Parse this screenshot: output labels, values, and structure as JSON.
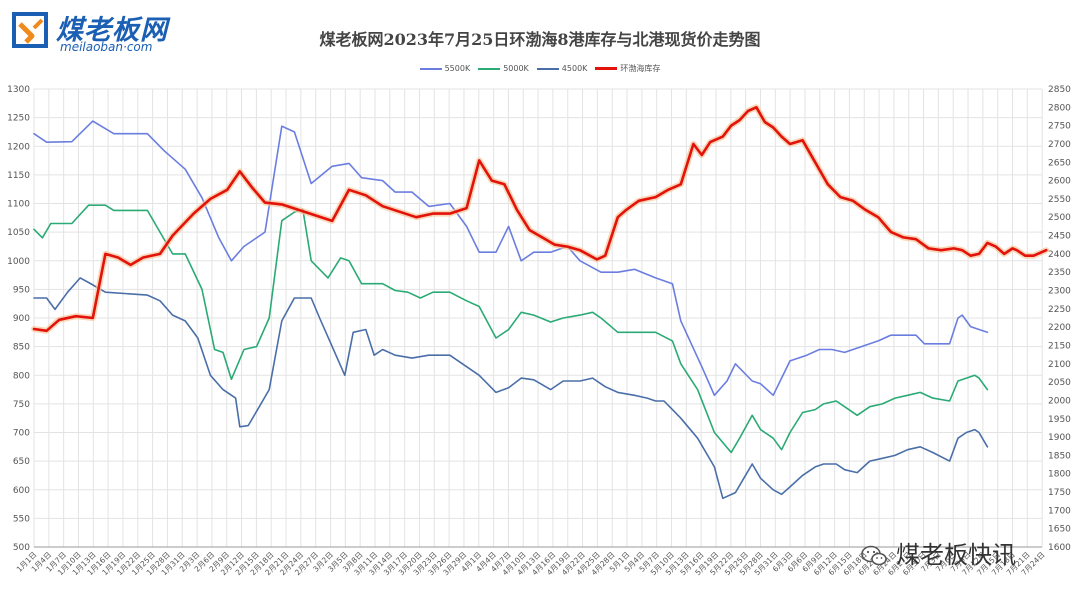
{
  "logo": {
    "main": "煤老板网",
    "sub": "meilaoban·com",
    "icon": "meilaoban-logo-icon"
  },
  "watermark": {
    "text": "煤老板快讯",
    "icon": "wechat-icon"
  },
  "chart_data": {
    "type": "line",
    "title": "煤老板网2023年7月25日环渤海8港库存与北港现货价走势图",
    "legend_position": "top-center",
    "grid": true,
    "ylim_left": [
      500,
      1300
    ],
    "yticks_left": [
      500,
      550,
      600,
      650,
      700,
      750,
      800,
      850,
      900,
      950,
      1000,
      1050,
      1100,
      1150,
      1200,
      1250,
      1300
    ],
    "ylim_right": [
      1600,
      2850
    ],
    "yticks_right": [
      1600,
      1650,
      1700,
      1750,
      1800,
      1850,
      1900,
      1950,
      2000,
      2050,
      2100,
      2150,
      2200,
      2250,
      2300,
      2350,
      2400,
      2450,
      2500,
      2550,
      2600,
      2650,
      2700,
      2750,
      2800,
      2850
    ],
    "x_tick_labels": [
      "1月1日",
      "1月4日",
      "1月7日",
      "1月10日",
      "1月13日",
      "1月16日",
      "1月19日",
      "1月22日",
      "1月25日",
      "1月28日",
      "1月31日",
      "2月3日",
      "2月6日",
      "2月9日",
      "2月12日",
      "2月15日",
      "2月18日",
      "2月21日",
      "2月24日",
      "2月27日",
      "3月2日",
      "3月5日",
      "3月8日",
      "3月11日",
      "3月14日",
      "3月17日",
      "3月20日",
      "3月23日",
      "3月26日",
      "3月29日",
      "4月1日",
      "4月4日",
      "4月7日",
      "4月10日",
      "4月13日",
      "4月16日",
      "4月19日",
      "4月22日",
      "4月25日",
      "4月28日",
      "5月1日",
      "5月4日",
      "5月7日",
      "5月10日",
      "5月13日",
      "5月16日",
      "5月19日",
      "5月22日",
      "5月25日",
      "5月28日",
      "5月31日",
      "6月3日",
      "6月6日",
      "6月9日",
      "6月12日",
      "6月15日",
      "6月18日",
      "6月21日",
      "6月24日",
      "6月27日",
      "6月30日",
      "7月3日",
      "7月6日",
      "7月9日",
      "7月12日",
      "7月15日",
      "7月18日",
      "7月21日",
      "7月24日"
    ],
    "series": [
      {
        "name": "5500K",
        "axis": "left",
        "color": "#6b7ee0",
        "points": [
          [
            0,
            1222
          ],
          [
            3,
            1207
          ],
          [
            9,
            1208
          ],
          [
            14,
            1244
          ],
          [
            19,
            1222
          ],
          [
            27,
            1222
          ],
          [
            31,
            1192
          ],
          [
            36,
            1160
          ],
          [
            40,
            1110
          ],
          [
            44,
            1040
          ],
          [
            47,
            1000
          ],
          [
            50,
            1025
          ],
          [
            55,
            1050
          ],
          [
            59,
            1235
          ],
          [
            62,
            1225
          ],
          [
            66,
            1135
          ],
          [
            71,
            1165
          ],
          [
            75,
            1170
          ],
          [
            78,
            1145
          ],
          [
            83,
            1140
          ],
          [
            86,
            1120
          ],
          [
            90,
            1120
          ],
          [
            94,
            1095
          ],
          [
            99,
            1100
          ],
          [
            103,
            1060
          ],
          [
            106,
            1015
          ],
          [
            110,
            1015
          ],
          [
            113,
            1060
          ],
          [
            116,
            1000
          ],
          [
            119,
            1015
          ],
          [
            123,
            1015
          ],
          [
            127,
            1025
          ],
          [
            130,
            1000
          ],
          [
            135,
            980
          ],
          [
            139,
            980
          ],
          [
            143,
            985
          ],
          [
            148,
            970
          ],
          [
            152,
            960
          ],
          [
            154,
            895
          ],
          [
            159,
            815
          ],
          [
            162,
            765
          ],
          [
            165,
            790
          ],
          [
            167,
            820
          ],
          [
            171,
            790
          ],
          [
            173,
            785
          ],
          [
            176,
            765
          ],
          [
            180,
            825
          ],
          [
            184,
            835
          ],
          [
            187,
            845
          ],
          [
            190,
            845
          ],
          [
            193,
            840
          ],
          [
            197,
            850
          ],
          [
            201,
            860
          ],
          [
            204,
            870
          ],
          [
            207,
            870
          ],
          [
            210,
            870
          ],
          [
            212,
            855
          ],
          [
            214,
            855
          ],
          [
            218,
            855
          ],
          [
            220,
            900
          ],
          [
            221,
            905
          ],
          [
            223,
            885
          ],
          [
            225,
            880
          ],
          [
            227,
            875
          ]
        ]
      },
      {
        "name": "5000K",
        "axis": "left",
        "color": "#2aaa75",
        "points": [
          [
            0,
            1055
          ],
          [
            2,
            1040
          ],
          [
            4,
            1065
          ],
          [
            9,
            1065
          ],
          [
            13,
            1097
          ],
          [
            17,
            1097
          ],
          [
            19,
            1088
          ],
          [
            27,
            1088
          ],
          [
            30,
            1050
          ],
          [
            33,
            1012
          ],
          [
            36,
            1012
          ],
          [
            40,
            950
          ],
          [
            43,
            845
          ],
          [
            45,
            840
          ],
          [
            47,
            793
          ],
          [
            50,
            845
          ],
          [
            53,
            850
          ],
          [
            56,
            900
          ],
          [
            59,
            1070
          ],
          [
            62,
            1085
          ],
          [
            64,
            1090
          ],
          [
            66,
            1000
          ],
          [
            70,
            970
          ],
          [
            73,
            1005
          ],
          [
            75,
            1000
          ],
          [
            78,
            960
          ],
          [
            83,
            960
          ],
          [
            86,
            948
          ],
          [
            89,
            945
          ],
          [
            92,
            935
          ],
          [
            95,
            945
          ],
          [
            99,
            945
          ],
          [
            103,
            930
          ],
          [
            106,
            920
          ],
          [
            110,
            865
          ],
          [
            113,
            880
          ],
          [
            116,
            910
          ],
          [
            119,
            905
          ],
          [
            123,
            893
          ],
          [
            126,
            900
          ],
          [
            130,
            905
          ],
          [
            133,
            910
          ],
          [
            135,
            900
          ],
          [
            139,
            875
          ],
          [
            143,
            875
          ],
          [
            148,
            875
          ],
          [
            152,
            860
          ],
          [
            154,
            820
          ],
          [
            158,
            775
          ],
          [
            162,
            700
          ],
          [
            166,
            665
          ],
          [
            168,
            690
          ],
          [
            171,
            730
          ],
          [
            173,
            705
          ],
          [
            176,
            690
          ],
          [
            178,
            670
          ],
          [
            180,
            700
          ],
          [
            183,
            735
          ],
          [
            186,
            740
          ],
          [
            188,
            750
          ],
          [
            191,
            755
          ],
          [
            193,
            745
          ],
          [
            196,
            730
          ],
          [
            199,
            745
          ],
          [
            202,
            750
          ],
          [
            205,
            760
          ],
          [
            208,
            765
          ],
          [
            211,
            770
          ],
          [
            214,
            760
          ],
          [
            218,
            755
          ],
          [
            220,
            790
          ],
          [
            222,
            795
          ],
          [
            224,
            800
          ],
          [
            225,
            795
          ],
          [
            227,
            775
          ]
        ]
      },
      {
        "name": "4500K",
        "axis": "left",
        "color": "#4a6fa8",
        "points": [
          [
            0,
            935
          ],
          [
            3,
            935
          ],
          [
            5,
            915
          ],
          [
            8,
            945
          ],
          [
            11,
            970
          ],
          [
            13,
            962
          ],
          [
            17,
            945
          ],
          [
            27,
            940
          ],
          [
            30,
            930
          ],
          [
            33,
            905
          ],
          [
            36,
            895
          ],
          [
            39,
            865
          ],
          [
            42,
            800
          ],
          [
            45,
            775
          ],
          [
            48,
            760
          ],
          [
            49,
            710
          ],
          [
            51,
            712
          ],
          [
            53,
            737
          ],
          [
            56,
            775
          ],
          [
            59,
            895
          ],
          [
            62,
            935
          ],
          [
            64,
            935
          ],
          [
            66,
            935
          ],
          [
            68,
            900
          ],
          [
            71,
            850
          ],
          [
            74,
            800
          ],
          [
            76,
            875
          ],
          [
            79,
            880
          ],
          [
            81,
            835
          ],
          [
            83,
            845
          ],
          [
            86,
            835
          ],
          [
            90,
            830
          ],
          [
            94,
            835
          ],
          [
            99,
            835
          ],
          [
            103,
            815
          ],
          [
            106,
            800
          ],
          [
            110,
            770
          ],
          [
            113,
            778
          ],
          [
            116,
            795
          ],
          [
            119,
            792
          ],
          [
            123,
            775
          ],
          [
            126,
            790
          ],
          [
            130,
            790
          ],
          [
            133,
            795
          ],
          [
            136,
            780
          ],
          [
            139,
            770
          ],
          [
            143,
            765
          ],
          [
            146,
            760
          ],
          [
            148,
            755
          ],
          [
            150,
            755
          ],
          [
            152,
            740
          ],
          [
            154,
            725
          ],
          [
            158,
            690
          ],
          [
            162,
            640
          ],
          [
            164,
            585
          ],
          [
            167,
            595
          ],
          [
            169,
            620
          ],
          [
            171,
            645
          ],
          [
            173,
            620
          ],
          [
            176,
            600
          ],
          [
            178,
            592
          ],
          [
            180,
            605
          ],
          [
            183,
            625
          ],
          [
            186,
            640
          ],
          [
            188,
            645
          ],
          [
            191,
            645
          ],
          [
            193,
            635
          ],
          [
            196,
            630
          ],
          [
            199,
            650
          ],
          [
            202,
            655
          ],
          [
            205,
            660
          ],
          [
            208,
            670
          ],
          [
            211,
            675
          ],
          [
            214,
            665
          ],
          [
            218,
            650
          ],
          [
            220,
            690
          ],
          [
            222,
            700
          ],
          [
            224,
            705
          ],
          [
            225,
            700
          ],
          [
            227,
            675
          ]
        ]
      },
      {
        "name": "环渤海库存",
        "axis": "right",
        "color": "#e3120b",
        "points": [
          [
            0,
            2195
          ],
          [
            3,
            2190
          ],
          [
            6,
            2220
          ],
          [
            10,
            2230
          ],
          [
            14,
            2225
          ],
          [
            17,
            2400
          ],
          [
            20,
            2390
          ],
          [
            23,
            2370
          ],
          [
            26,
            2390
          ],
          [
            30,
            2400
          ],
          [
            33,
            2450
          ],
          [
            38,
            2510
          ],
          [
            42,
            2550
          ],
          [
            46,
            2575
          ],
          [
            49,
            2625
          ],
          [
            52,
            2580
          ],
          [
            55,
            2540
          ],
          [
            59,
            2535
          ],
          [
            63,
            2520
          ],
          [
            67,
            2505
          ],
          [
            71,
            2490
          ],
          [
            75,
            2575
          ],
          [
            79,
            2560
          ],
          [
            83,
            2530
          ],
          [
            87,
            2515
          ],
          [
            91,
            2500
          ],
          [
            95,
            2510
          ],
          [
            99,
            2510
          ],
          [
            103,
            2525
          ],
          [
            106,
            2655
          ],
          [
            109,
            2600
          ],
          [
            112,
            2590
          ],
          [
            115,
            2520
          ],
          [
            118,
            2465
          ],
          [
            121,
            2445
          ],
          [
            124,
            2425
          ],
          [
            127,
            2420
          ],
          [
            130,
            2410
          ],
          [
            134,
            2385
          ],
          [
            136,
            2395
          ],
          [
            139,
            2500
          ],
          [
            141,
            2520
          ],
          [
            144,
            2545
          ],
          [
            148,
            2555
          ],
          [
            151,
            2575
          ],
          [
            154,
            2590
          ],
          [
            157,
            2700
          ],
          [
            159,
            2670
          ],
          [
            161,
            2705
          ],
          [
            164,
            2720
          ],
          [
            166,
            2750
          ],
          [
            168,
            2765
          ],
          [
            170,
            2790
          ],
          [
            172,
            2800
          ],
          [
            174,
            2760
          ],
          [
            176,
            2745
          ],
          [
            178,
            2720
          ],
          [
            180,
            2700
          ],
          [
            183,
            2710
          ],
          [
            186,
            2650
          ],
          [
            189,
            2590
          ],
          [
            192,
            2555
          ],
          [
            195,
            2545
          ],
          [
            198,
            2520
          ],
          [
            201,
            2500
          ],
          [
            204,
            2460
          ],
          [
            207,
            2445
          ],
          [
            210,
            2440
          ],
          [
            213,
            2415
          ],
          [
            216,
            2410
          ],
          [
            219,
            2415
          ],
          [
            221,
            2410
          ],
          [
            223,
            2395
          ],
          [
            225,
            2400
          ],
          [
            227,
            2430
          ],
          [
            229,
            2420
          ],
          [
            231,
            2400
          ],
          [
            233,
            2415
          ],
          [
            234,
            2410
          ],
          [
            236,
            2395
          ],
          [
            238,
            2395
          ],
          [
            241,
            2410
          ]
        ]
      }
    ]
  }
}
